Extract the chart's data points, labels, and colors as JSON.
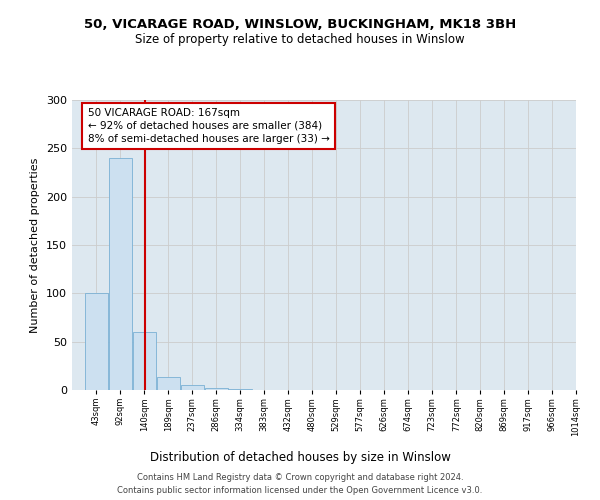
{
  "title1": "50, VICARAGE ROAD, WINSLOW, BUCKINGHAM, MK18 3BH",
  "title2": "Size of property relative to detached houses in Winslow",
  "xlabel": "Distribution of detached houses by size in Winslow",
  "ylabel": "Number of detached properties",
  "bin_labels": [
    "43sqm",
    "92sqm",
    "140sqm",
    "189sqm",
    "237sqm",
    "286sqm",
    "334sqm",
    "383sqm",
    "432sqm",
    "480sqm",
    "529sqm",
    "577sqm",
    "626sqm",
    "674sqm",
    "723sqm",
    "772sqm",
    "820sqm",
    "869sqm",
    "917sqm",
    "966sqm",
    "1014sqm"
  ],
  "bin_edges": [
    43,
    92,
    140,
    189,
    237,
    286,
    334,
    383,
    432,
    480,
    529,
    577,
    626,
    674,
    723,
    772,
    820,
    869,
    917,
    966,
    1014
  ],
  "bar_heights": [
    100,
    240,
    60,
    13,
    5,
    2,
    1,
    0,
    0,
    0,
    0,
    0,
    0,
    0,
    0,
    0,
    0,
    0,
    0,
    0
  ],
  "bar_color": "#cce0f0",
  "bar_edgecolor": "#7ab0d4",
  "vline_x": 167,
  "vline_color": "#cc0000",
  "annotation_text": "50 VICARAGE ROAD: 167sqm\n← 92% of detached houses are smaller (384)\n8% of semi-detached houses are larger (33) →",
  "annotation_box_color": "#cc0000",
  "annotation_bg": "#ffffff",
  "plot_bg": "#dde8f0",
  "fig_bg": "#ffffff",
  "footer": "Contains HM Land Registry data © Crown copyright and database right 2024.\nContains public sector information licensed under the Open Government Licence v3.0.",
  "ylim": [
    0,
    300
  ],
  "yticks": [
    0,
    50,
    100,
    150,
    200,
    250,
    300
  ],
  "grid_color": "#cccccc"
}
